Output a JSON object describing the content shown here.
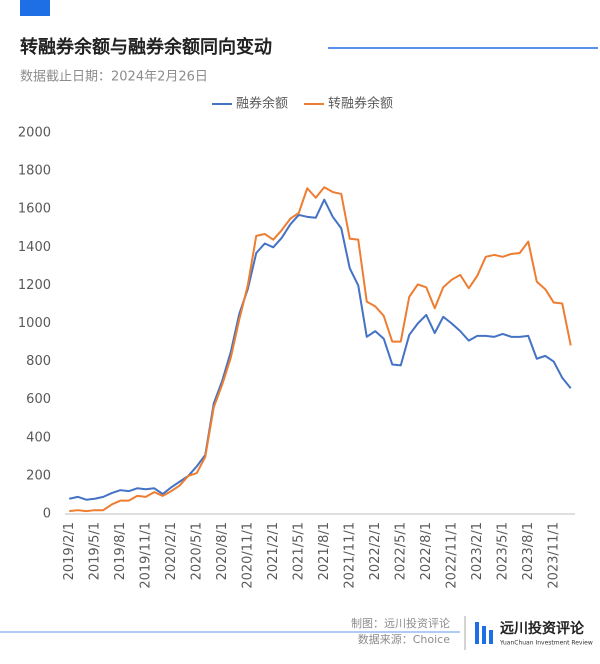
{
  "header": {
    "title": "转融券余额与融券余额同向变动",
    "subtitle": "数据截止日期：2024年2月26日"
  },
  "chart_data": {
    "type": "line",
    "categories": [
      "2019/2/1",
      null,
      null,
      "2019/5/1",
      null,
      null,
      "2019/8/1",
      null,
      null,
      "2019/11/1",
      null,
      null,
      "2020/2/1",
      null,
      null,
      "2020/5/1",
      null,
      null,
      "2020/8/1",
      null,
      null,
      "2020/11/1",
      null,
      null,
      "2021/2/1",
      null,
      null,
      "2021/5/1",
      null,
      null,
      "2021/8/1",
      null,
      null,
      "2021/11/1",
      null,
      null,
      "2022/2/1",
      null,
      null,
      "2022/5/1",
      null,
      null,
      "2022/8/1",
      null,
      null,
      "2022/11/1",
      null,
      null,
      "2023/2/1",
      null,
      null,
      "2023/5/1",
      null,
      null,
      "2023/8/1",
      null,
      null,
      "2023/11/1",
      null,
      null
    ],
    "series": [
      {
        "name": "融券余额",
        "color": "#4472c4",
        "values": [
          80,
          90,
          75,
          80,
          90,
          110,
          125,
          120,
          135,
          130,
          135,
          105,
          140,
          170,
          200,
          250,
          310,
          580,
          700,
          850,
          1050,
          1180,
          1370,
          1420,
          1400,
          1450,
          1520,
          1570,
          1560,
          1555,
          1650,
          1560,
          1500,
          1290,
          1200,
          930,
          960,
          920,
          785,
          780,
          940,
          1000,
          1045,
          950,
          1035,
          1000,
          960,
          910,
          935,
          935,
          930,
          945,
          930,
          930,
          935,
          815,
          830,
          800,
          715,
          660
        ]
      },
      {
        "name": "转融券余额",
        "color": "#ed7d31",
        "values": [
          15,
          20,
          15,
          20,
          20,
          50,
          70,
          70,
          95,
          90,
          115,
          95,
          120,
          150,
          200,
          215,
          300,
          560,
          680,
          820,
          1020,
          1200,
          1460,
          1470,
          1440,
          1490,
          1550,
          1580,
          1710,
          1660,
          1715,
          1690,
          1680,
          1445,
          1440,
          1115,
          1090,
          1040,
          905,
          905,
          1140,
          1205,
          1190,
          1080,
          1190,
          1230,
          1255,
          1185,
          1250,
          1350,
          1360,
          1350,
          1365,
          1370,
          1430,
          1220,
          1180,
          1110,
          1105,
          885
        ]
      }
    ],
    "ylim": [
      0,
      2000
    ],
    "yticks": [
      0,
      200,
      400,
      600,
      800,
      1000,
      1200,
      1400,
      1600,
      1800,
      2000
    ],
    "grid": false,
    "legend": "top"
  },
  "footer": {
    "credit": "制图：远川投资评论",
    "source": "数据来源：Choice",
    "brand": "远川投资评论",
    "brand_en": "YuanChuan Investment Review"
  }
}
